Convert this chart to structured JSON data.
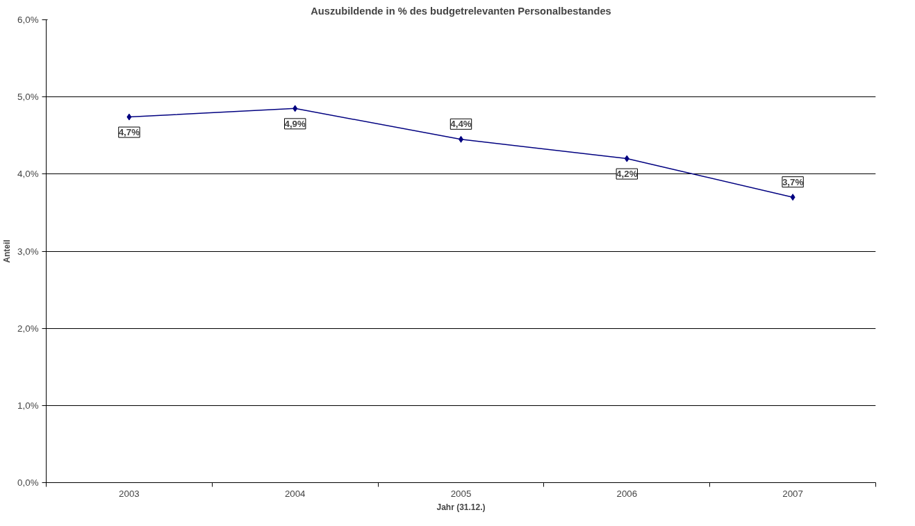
{
  "chart_data": {
    "type": "line",
    "title": "Auszubildende in % des budgetrelevanten Personalbestandes",
    "xlabel": "Jahr (31.12.)",
    "ylabel": "Anteil",
    "categories": [
      "2003",
      "2004",
      "2005",
      "2006",
      "2007"
    ],
    "series": [
      {
        "color": "#000080",
        "values": [
          4.74,
          4.85,
          4.45,
          4.2,
          3.7
        ],
        "value_labels": [
          "4,7%",
          "4,9%",
          "4,4%",
          "4,2%",
          "3,7%"
        ]
      }
    ],
    "ylim": [
      0,
      6
    ],
    "yticks": [
      {
        "value": 0,
        "label": "0,0%"
      },
      {
        "value": 1,
        "label": "1,0%"
      },
      {
        "value": 2,
        "label": "2,0%"
      },
      {
        "value": 3,
        "label": "3,0%"
      },
      {
        "value": 4,
        "label": "4,0%"
      },
      {
        "value": 5,
        "label": "5,0%"
      },
      {
        "value": 6,
        "label": "6,0%"
      }
    ],
    "grid": "y",
    "marker": "diamond",
    "line_style": "solid"
  }
}
